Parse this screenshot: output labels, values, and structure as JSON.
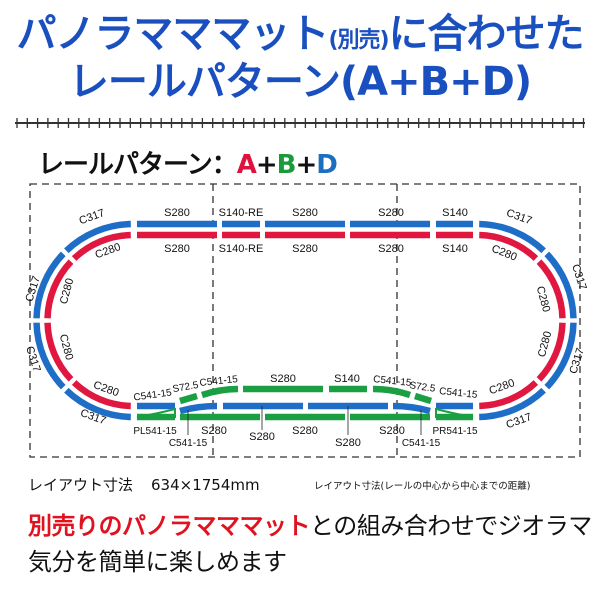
{
  "header": {
    "title_line1_a": "パノラマママット",
    "title_line1_paren": "(別売)",
    "title_line1_b": "に合わせた",
    "title_line2": "レールパターン(A+B+D)"
  },
  "pattern": {
    "label": "レールパターン：",
    "a": "A",
    "plus1": "+",
    "b": "B",
    "plus2": "+",
    "d": "D"
  },
  "colors": {
    "title_blue": "#1a4fc0",
    "track_a_red": "#e0173f",
    "track_b_green": "#1aa043",
    "track_d_blue": "#1e6ec8"
  },
  "track_labels": {
    "top_outer": [
      "S280",
      "S140-RE",
      "S280",
      "S280",
      "S140"
    ],
    "top_inner": [
      "S280",
      "S140-RE",
      "S280",
      "S280",
      "S140"
    ],
    "left_outer": [
      "C317",
      "C317",
      "C317",
      "C317"
    ],
    "left_inner": [
      "C280",
      "C280",
      "C280",
      "C280"
    ],
    "right_outer": [
      "C317",
      "C317",
      "C317",
      "C317"
    ],
    "right_inner": [
      "C280",
      "C280",
      "C280",
      "C280"
    ],
    "bottom_upper": [
      "C541-15",
      "S72.5",
      "C541-15",
      "S280",
      "S140",
      "C541-15",
      "S72.5",
      "C541-15"
    ],
    "bottom_lower": [
      "PL541-15",
      "C541-15",
      "S280",
      "S280",
      "S280",
      "S280",
      "S280",
      "C541-15",
      "PR541-15"
    ]
  },
  "dimensions": {
    "label": "レイアウト寸法",
    "value": "634×1754mm",
    "note": "レイアウト寸法(レールの中心から中心までの距離)"
  },
  "caption": {
    "line1_red": "別売りのパノラマママット",
    "line1_rest": "との組み合わせでジオラマ",
    "line2": "気分を簡単に楽しめます"
  }
}
